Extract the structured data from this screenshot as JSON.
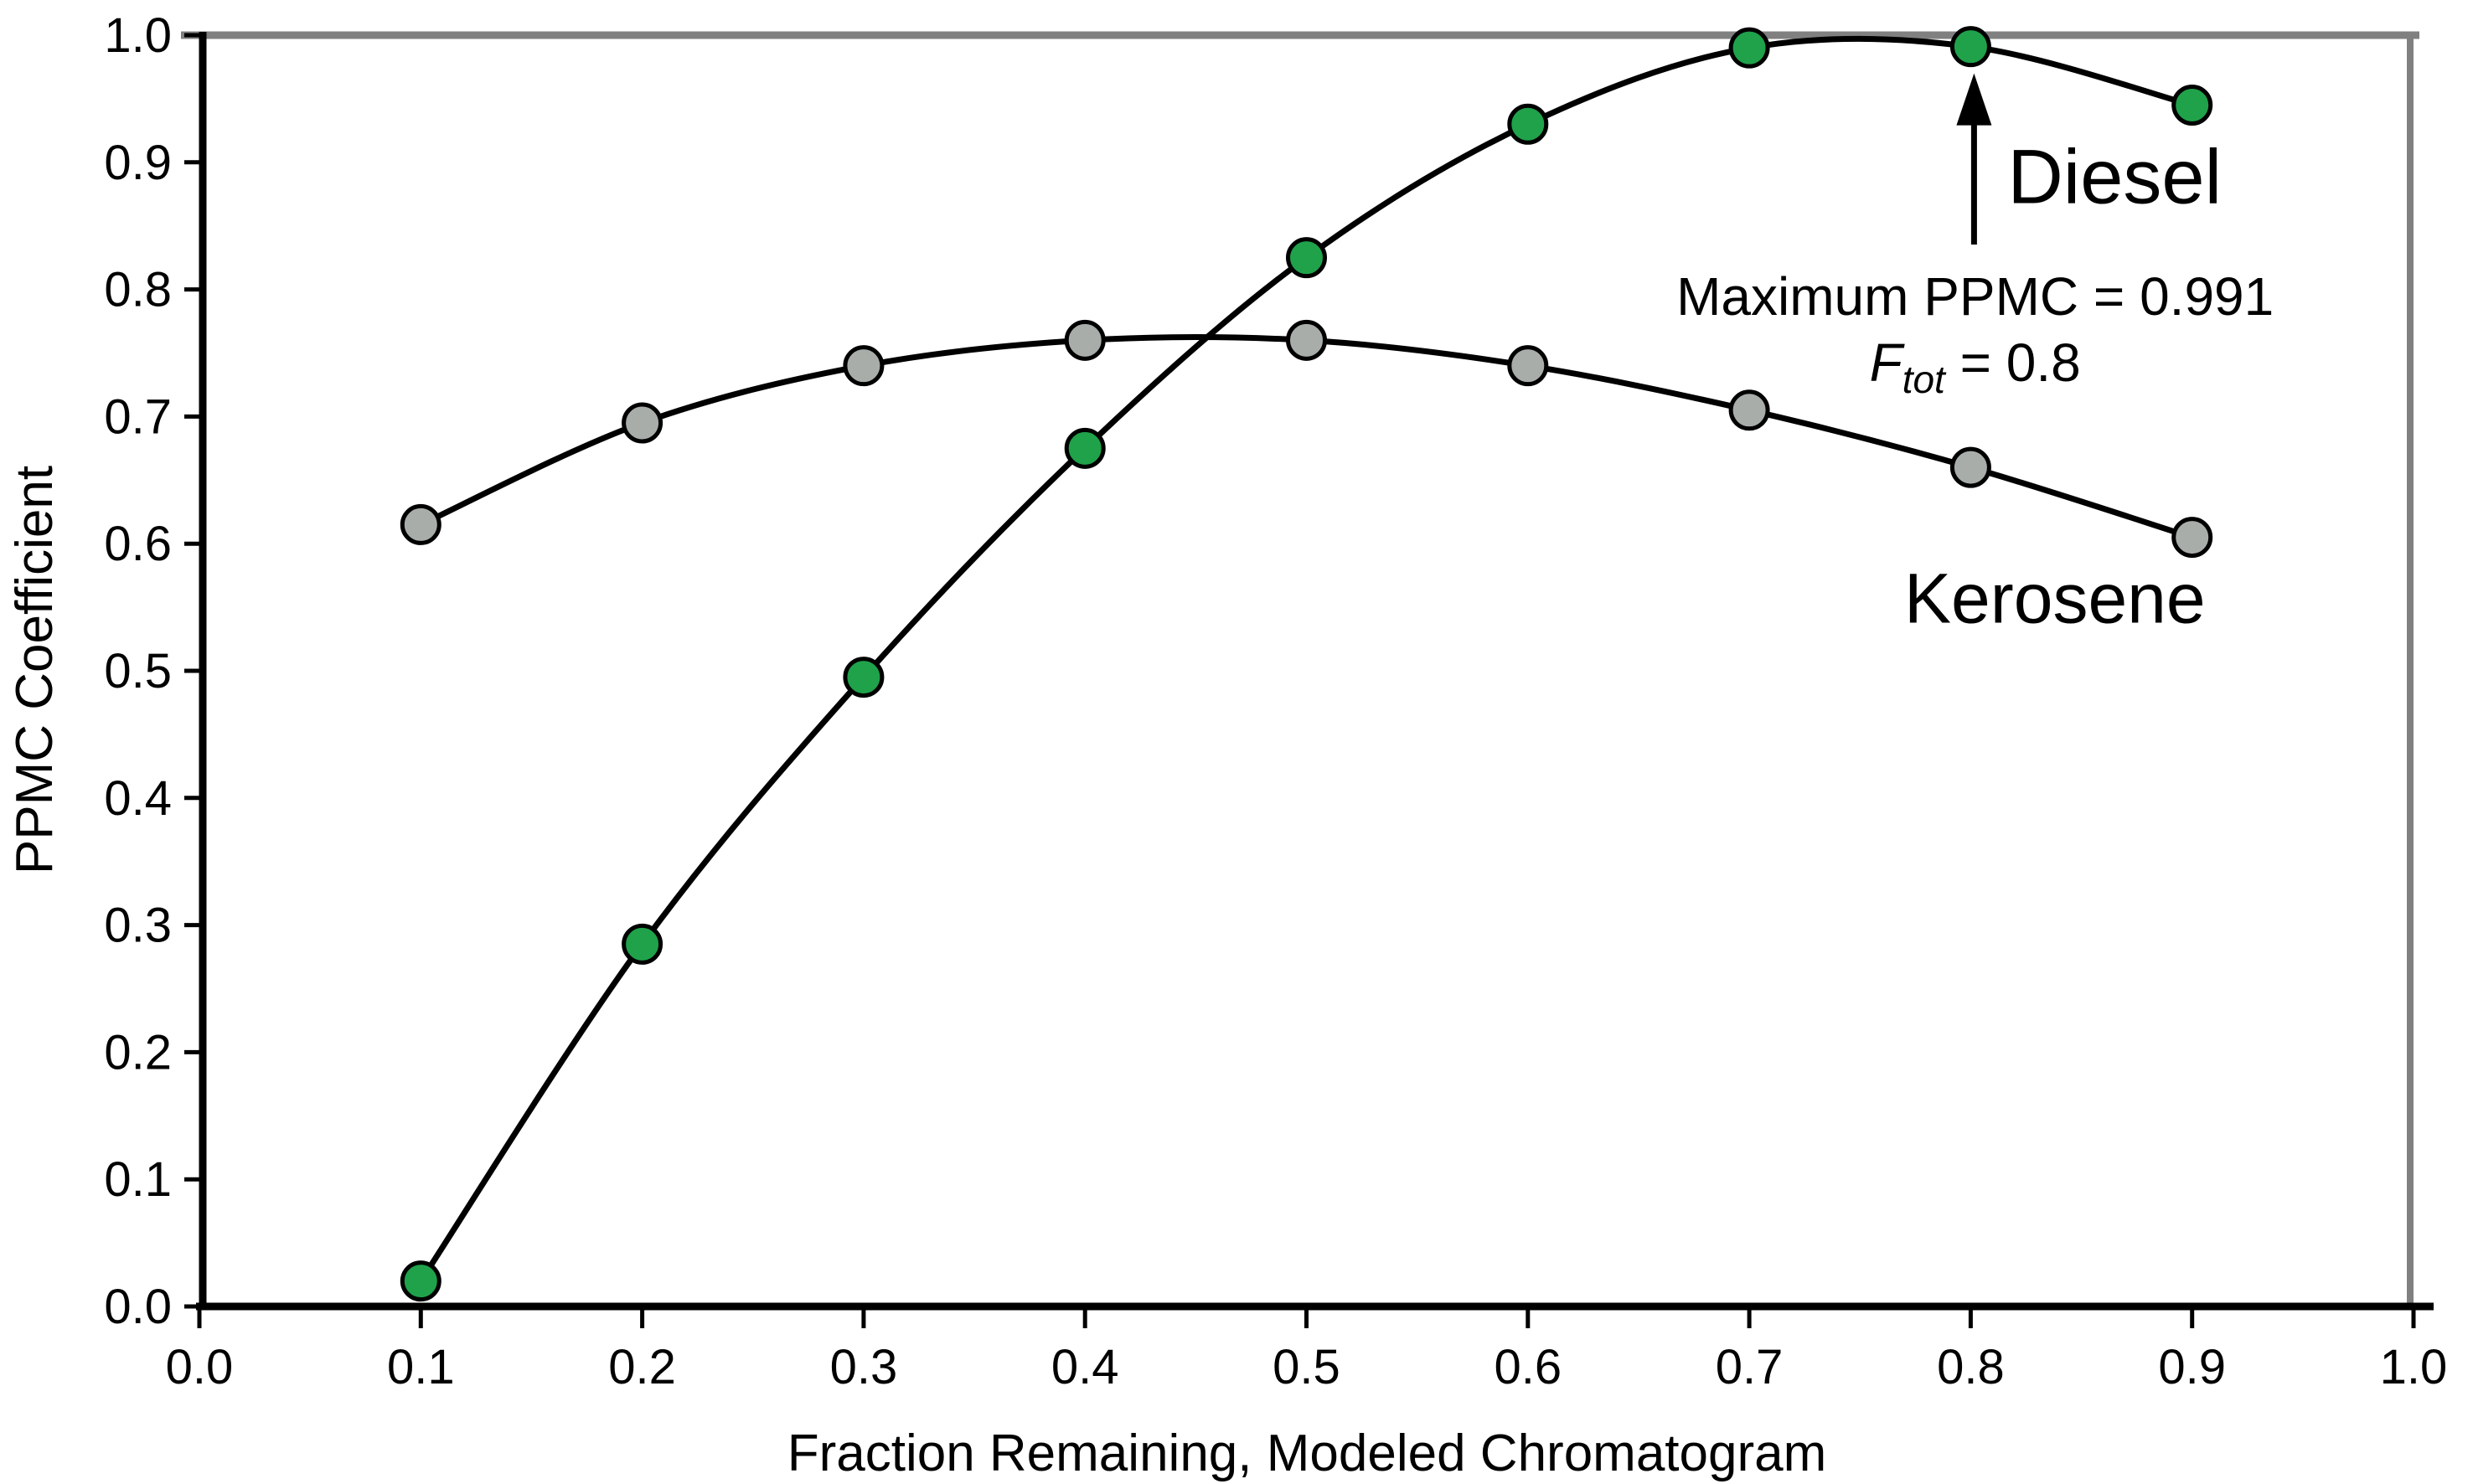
{
  "chart_data": {
    "type": "line",
    "x": [
      0.1,
      0.2,
      0.3,
      0.4,
      0.5,
      0.6,
      0.7,
      0.8,
      0.9
    ],
    "series": [
      {
        "name": "Diesel",
        "marker_fill": "#1fa24a",
        "marker_stroke": "#000000",
        "line_color": "#000000",
        "values": [
          0.02,
          0.285,
          0.495,
          0.675,
          0.825,
          0.93,
          0.99,
          0.991,
          0.945
        ]
      },
      {
        "name": "Kerosene",
        "marker_fill": "#a8adaa",
        "marker_stroke": "#000000",
        "line_color": "#000000",
        "values": [
          0.615,
          0.695,
          0.74,
          0.76,
          0.76,
          0.74,
          0.705,
          0.66,
          0.605
        ]
      }
    ],
    "title": "",
    "xlabel": "Fraction Remaining, Modeled Chromatogram",
    "ylabel": "PPMC Coefficient",
    "xlim": [
      0.0,
      1.0
    ],
    "ylim": [
      0.0,
      1.0
    ],
    "x_tick_labels": [
      "0.0",
      "0.1",
      "0.2",
      "0.3",
      "0.4",
      "0.5",
      "0.6",
      "0.7",
      "0.8",
      "0.9",
      "1.0"
    ],
    "y_tick_labels": [
      "0.0",
      "0.1",
      "0.2",
      "0.3",
      "0.4",
      "0.5",
      "0.6",
      "0.7",
      "0.8",
      "0.9",
      "1.0"
    ],
    "grid": "off",
    "legend_position": "inline-labels",
    "series_labels": [
      {
        "text": "Diesel",
        "x": 0.865,
        "y": 0.868,
        "font_px": 92
      },
      {
        "text": "Kerosene",
        "x": 0.838,
        "y": 0.538,
        "font_px": 84
      }
    ],
    "annotation": {
      "line1": "Maximum PPMC = 0.991",
      "line2_var": "F",
      "line2_sub": "tot",
      "line2_rest": " = 0.8",
      "points_at_x": 0.8,
      "points_at_series": "Diesel",
      "text_center_x": 0.802,
      "line1_baseline_y": 0.78,
      "line2_baseline_y": 0.728
    },
    "colors": {
      "axis": "#000000",
      "border_gray": "#808080",
      "background": "#ffffff"
    }
  }
}
